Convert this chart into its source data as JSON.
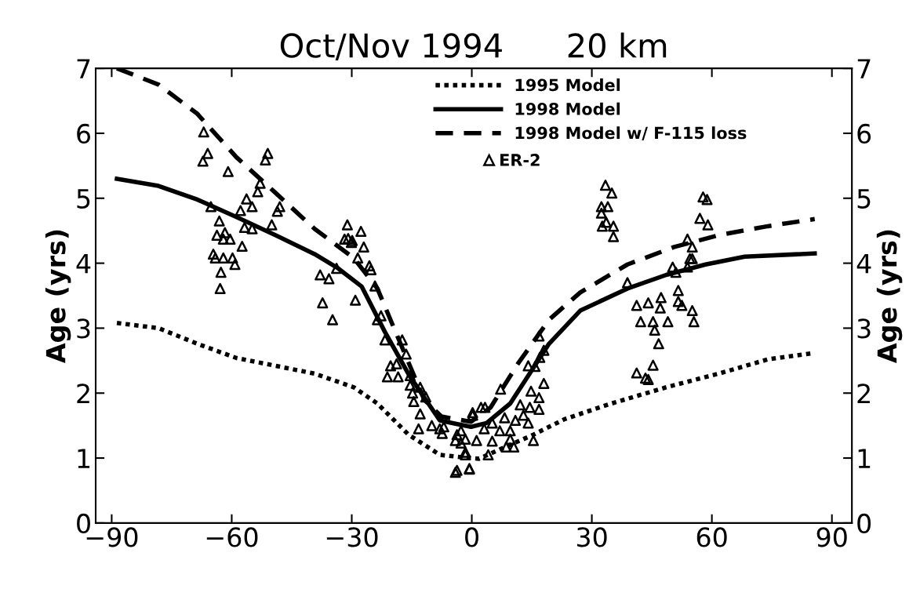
{
  "chart_data": {
    "type": "line",
    "title": "Oct/Nov 1994      20 km",
    "ylabel": "Age (yrs)",
    "y2label": "Age (yrs)",
    "xlim": [
      -94,
      95
    ],
    "xticks": [
      -90,
      -60,
      -30,
      0,
      30,
      60,
      90
    ],
    "ylim": [
      0,
      7
    ],
    "yticks": [
      0,
      1,
      2,
      3,
      4,
      5,
      6,
      7
    ],
    "y2lim": [
      0,
      7
    ],
    "y2ticks": [
      0,
      1,
      2,
      3,
      4,
      5,
      6,
      7
    ],
    "grid": false,
    "legend": "top right",
    "series": [
      {
        "name": "1995 Model",
        "line_style": "dotted",
        "marker": "none",
        "color": "#000000",
        "x": [
          -88.7,
          -78.3,
          -68.6,
          -58.8,
          -49.0,
          -39.3,
          -29.5,
          -23.6,
          -15.8,
          -8.0,
          -2.1,
          1.8,
          7.6,
          15.4,
          23.2,
          34.9,
          48.6,
          62.3,
          74.0,
          85.7
        ],
        "values": [
          3.08,
          3.0,
          2.76,
          2.54,
          2.42,
          2.3,
          2.09,
          1.84,
          1.36,
          1.05,
          1.01,
          0.99,
          1.15,
          1.36,
          1.6,
          1.84,
          2.09,
          2.31,
          2.52,
          2.62
        ]
      },
      {
        "name": "1998 Model",
        "line_style": "solid",
        "marker": "none",
        "color": "#000000",
        "x": [
          -88.7,
          -78.3,
          -68.6,
          -58.8,
          -49.0,
          -39.3,
          -33.4,
          -27.5,
          -21.7,
          -15.6,
          -8.0,
          -4.1,
          -0.2,
          3.7,
          9.6,
          19.3,
          27.1,
          38.9,
          48.6,
          58.4,
          68.2,
          85.7
        ],
        "values": [
          5.3,
          5.19,
          4.98,
          4.71,
          4.43,
          4.14,
          3.92,
          3.64,
          2.94,
          2.27,
          1.58,
          1.53,
          1.48,
          1.54,
          1.84,
          2.76,
          3.27,
          3.61,
          3.82,
          3.98,
          4.1,
          4.15
        ]
      },
      {
        "name": "1998 Model w/ F-115 loss",
        "line_style": "dashed",
        "marker": "none",
        "color": "#000000",
        "x": [
          -88.7,
          -78.3,
          -68.6,
          -58.8,
          -49.0,
          -39.3,
          -29.5,
          -23.6,
          -17.8,
          -11.9,
          -7.6,
          -4.1,
          -0.2,
          4.7,
          11.5,
          19.3,
          27.1,
          38.9,
          50.6,
          62.3,
          74.0,
          85.7
        ],
        "values": [
          7.0,
          6.75,
          6.3,
          5.63,
          5.08,
          4.53,
          4.08,
          3.61,
          2.76,
          1.9,
          1.64,
          1.6,
          1.56,
          1.78,
          2.45,
          3.13,
          3.55,
          3.98,
          4.25,
          4.44,
          4.57,
          4.68
        ]
      },
      {
        "name": "ER-2",
        "type": "scatter",
        "marker": "triangle",
        "color": "#000000",
        "x": [
          -67.0,
          -66.0,
          -67.2,
          -60.9,
          -51.0,
          -51.6,
          -52.9,
          -53.5,
          -56.3,
          -54.9,
          -57.8,
          -65.2,
          -48.0,
          -48.6,
          -50.0,
          -63.1,
          -56.8,
          -54.9,
          -61.7,
          -63.7,
          -62.1,
          -60.4,
          -57.4,
          -64.6,
          -64.1,
          -62.1,
          -59.8,
          -59.2,
          -62.7,
          -62.9,
          -37.9,
          -35.7,
          -33.8,
          -37.3,
          -31.1,
          -30.9,
          -29.9,
          -27.7,
          -31.8,
          -30.1,
          -27.0,
          -28.5,
          -25.6,
          -25.2,
          -24.2,
          -29.1,
          -34.8,
          -23.6,
          -22.7,
          -21.7,
          -17.4,
          -16.4,
          -20.3,
          -18.8,
          -21.1,
          -18.4,
          -15.4,
          -15.4,
          -12.9,
          -14.8,
          -11.5,
          -14.5,
          -12.9,
          -13.3,
          -10.0,
          -7.4,
          -8.0,
          -3.7,
          -2.7,
          -1.6,
          0.2,
          -4.1,
          -0.6,
          2.3,
          16.8,
          17.0,
          18.0,
          14.1,
          15.8,
          7.2,
          18.0,
          14.8,
          16.8,
          3.3,
          0.2,
          12.1,
          14.5,
          16.8,
          12.9,
          8.2,
          10.9,
          14.1,
          5.1,
          3.1,
          7.0,
          9.6,
          -2.7,
          -1.6,
          -4.1,
          1.2,
          5.1,
          9.6,
          15.4,
          8.6,
          10.5,
          4.1,
          -1.6,
          -3.7,
          -0.6,
          -7.0,
          33.4,
          35.0,
          32.4,
          34.0,
          32.4,
          33.6,
          32.6,
          35.4,
          35.4,
          57.8,
          58.8,
          57.0,
          59.0,
          53.9,
          55.1,
          55.1,
          38.9,
          41.2,
          44.1,
          47.3,
          47.1,
          42.2,
          45.3,
          45.7,
          46.7,
          49.0,
          51.6,
          51.6,
          52.5,
          55.1,
          55.5,
          50.2,
          51.0,
          53.9,
          54.5,
          45.3,
          41.2,
          43.4,
          44.1
        ],
        "values": [
          6.02,
          5.69,
          5.57,
          5.41,
          5.69,
          5.59,
          5.23,
          5.1,
          4.99,
          4.87,
          4.81,
          4.87,
          4.87,
          4.8,
          4.59,
          4.65,
          4.55,
          4.53,
          4.47,
          4.43,
          4.37,
          4.37,
          4.26,
          4.14,
          4.08,
          4.08,
          4.08,
          3.98,
          3.86,
          3.61,
          3.82,
          3.76,
          3.92,
          3.39,
          4.59,
          4.38,
          4.35,
          4.49,
          4.37,
          4.32,
          4.25,
          4.08,
          3.96,
          3.9,
          3.65,
          3.43,
          3.13,
          3.13,
          3.19,
          2.82,
          2.82,
          2.6,
          2.42,
          2.45,
          2.25,
          2.25,
          2.27,
          2.12,
          2.09,
          2.0,
          1.94,
          1.87,
          1.68,
          1.45,
          1.5,
          1.38,
          1.45,
          1.36,
          1.23,
          1.09,
          1.66,
          0.78,
          0.84,
          1.78,
          2.88,
          2.55,
          2.66,
          2.42,
          2.41,
          2.06,
          2.15,
          2.03,
          1.93,
          1.78,
          1.7,
          1.82,
          1.78,
          1.75,
          1.66,
          1.62,
          1.58,
          1.54,
          1.54,
          1.45,
          1.42,
          1.42,
          1.42,
          1.29,
          1.27,
          1.27,
          1.26,
          1.29,
          1.27,
          1.17,
          1.17,
          1.05,
          1.05,
          0.81,
          0.83,
          1.48,
          5.2,
          5.08,
          4.87,
          4.87,
          4.77,
          4.63,
          4.57,
          4.57,
          4.41,
          5.02,
          4.98,
          4.69,
          4.59,
          4.37,
          4.25,
          4.07,
          3.7,
          3.35,
          3.39,
          3.47,
          3.31,
          3.1,
          3.1,
          2.97,
          2.76,
          3.1,
          3.58,
          3.41,
          3.35,
          3.27,
          3.1,
          3.94,
          3.86,
          3.94,
          4.07,
          2.43,
          2.31,
          2.23,
          2.21
        ]
      }
    ]
  }
}
